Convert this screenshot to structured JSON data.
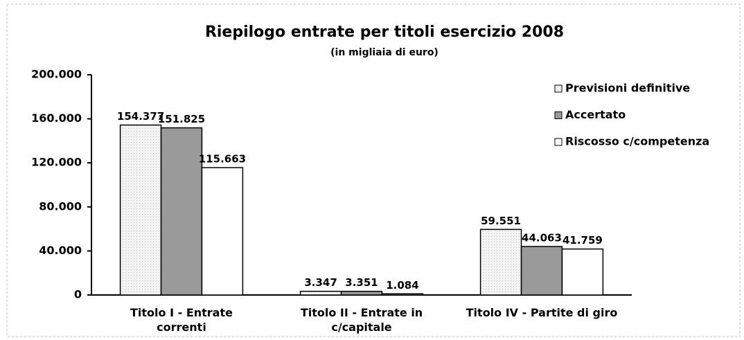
{
  "chart_data": {
    "type": "bar",
    "title": "Riepilogo entrate per titoli esercizio 2008",
    "subtitle": "(in migliaia di euro)",
    "categories": [
      "Titolo I - Entrate correnti",
      "Titolo II - Entrate in c/capitale",
      "Titolo IV - Partite di giro"
    ],
    "series": [
      {
        "name": "Previsioni definitive",
        "color": "#eeeeee",
        "values": [
          154377,
          3347,
          59551
        ],
        "value_labels": [
          "154.377",
          "3.347",
          "59.551"
        ]
      },
      {
        "name": "Accertato",
        "color": "#9a9a9a",
        "values": [
          151825,
          3351,
          44063
        ],
        "value_labels": [
          "151.825",
          "3.351",
          "44.063"
        ]
      },
      {
        "name": "Riscosso c/competenza",
        "color": "#ffffff",
        "values": [
          115663,
          1084,
          41759
        ],
        "value_labels": [
          "115.663",
          "1.084",
          "41.759"
        ]
      }
    ],
    "ylim": [
      0,
      200000
    ],
    "yticks": [
      0,
      {
        "value": 40000,
        "label": "40.000"
      },
      {
        "value": 80000,
        "label": "80.000"
      },
      {
        "value": 120000,
        "label": "120.000"
      },
      {
        "value": 160000,
        "label": "160.000"
      },
      {
        "value": 200000,
        "label": "200.000"
      }
    ],
    "grid": false,
    "legend": "top-right"
  }
}
